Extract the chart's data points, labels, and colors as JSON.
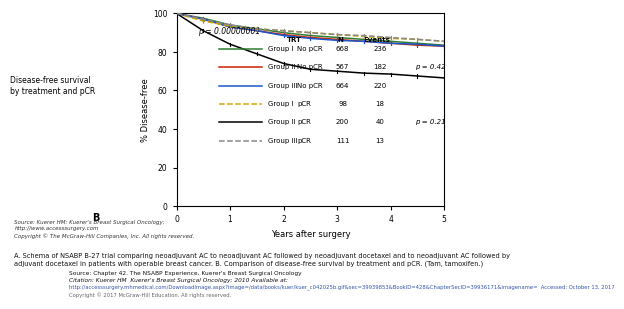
{
  "title": "",
  "ylabel": "% Disease-free",
  "xlabel": "Years after surgery",
  "xlim": [
    0,
    5
  ],
  "ylim": [
    0,
    100
  ],
  "yticks": [
    0,
    20,
    40,
    60,
    80,
    100
  ],
  "xticks": [
    0,
    1,
    2,
    3,
    4,
    5
  ],
  "p_value_top": "p = 0.00000001",
  "p_value_npcr": "p = 0.42",
  "p_value_pcr": "p = 0.21",
  "label_left": "Disease-free survival\nby treatment and pCR",
  "label_B": "B",
  "source_text": "Source: Kuerer HM: Kuerer's Breast Surgical Oncology;\nhttp://www.accesssurgery.com\nCopyright © The McGraw-Hill Companies, Inc. All rights reserved.",
  "caption": "A. Schema of NSABP B-27 trial comparing neoadjuvant AC to neoadjuvant AC followed by neoadjuvant docetaxel and to neoadjuvant AC followed by\nadjuvant docetaxel in patients with operable breast cancer. B. Comparison of disease-free survival by treatment and pCR. (Tam, tamoxifen.)",
  "legend_entries": [
    {
      "label": "Group I",
      "trt": "No pCR",
      "N": 668,
      "Events": 236,
      "color": "#2e7d32",
      "linestyle": "solid",
      "dashed": false
    },
    {
      "label": "Group II",
      "trt": "No pCR",
      "N": 567,
      "Events": 182,
      "color": "#cc2200",
      "linestyle": "solid",
      "dashed": false
    },
    {
      "label": "Group III",
      "trt": "No pCR",
      "N": 664,
      "Events": 220,
      "color": "#1a56cc",
      "linestyle": "solid",
      "dashed": false
    },
    {
      "label": "Group I",
      "trt": "pCR",
      "N": 98,
      "Events": 18,
      "color": "#ccaa00",
      "linestyle": "dashed",
      "dashed": true
    },
    {
      "label": "Group II",
      "trt": "pCR",
      "N": 200,
      "Events": 40,
      "color": "#000000",
      "linestyle": "solid",
      "dashed": false
    },
    {
      "label": "Group III",
      "trt": "pCR",
      "N": 111,
      "Events": 13,
      "color": "#888888",
      "linestyle": "dashed",
      "dashed": true
    }
  ],
  "curves": {
    "group1_npcr": {
      "x": [
        0,
        0.5,
        1,
        1.5,
        2,
        2.5,
        3,
        3.5,
        4,
        4.5,
        5
      ],
      "y": [
        100,
        97.5,
        94,
        92,
        90,
        88.5,
        87.5,
        86.5,
        85.5,
        84.5,
        83.5
      ]
    },
    "group2_npcr": {
      "x": [
        0,
        0.5,
        1,
        1.5,
        2,
        2.5,
        3,
        3.5,
        4,
        4.5,
        5
      ],
      "y": [
        100,
        97,
        93,
        91,
        89,
        87.5,
        86.5,
        85.5,
        84.5,
        83.5,
        83
      ]
    },
    "group3_npcr": {
      "x": [
        0,
        0.5,
        1,
        1.5,
        2,
        2.5,
        3,
        3.5,
        4,
        4.5,
        5
      ],
      "y": [
        100,
        97,
        93,
        91,
        88.5,
        87,
        86,
        85.5,
        84.5,
        84,
        83
      ]
    },
    "group1_pcr": {
      "x": [
        0,
        0.5,
        1,
        1.5,
        2,
        2.5,
        3,
        3.5,
        4,
        4.5,
        5
      ],
      "y": [
        100,
        96,
        93.5,
        92,
        91,
        90,
        89,
        88,
        87,
        86.5,
        85.5
      ]
    },
    "group2_pcr": {
      "x": [
        0,
        0.5,
        1,
        1.5,
        2,
        2.5,
        3,
        3.5,
        4,
        4.5,
        5
      ],
      "y": [
        100,
        91,
        84,
        79,
        74,
        71,
        70,
        69,
        68.5,
        67.5,
        66.5
      ]
    },
    "group3_pcr": {
      "x": [
        0,
        0.5,
        1,
        1.5,
        2,
        2.5,
        3,
        3.5,
        4,
        4.5,
        5
      ],
      "y": [
        100,
        97,
        94,
        92,
        91,
        90,
        89,
        88.5,
        87.5,
        86.5,
        85.5
      ]
    }
  },
  "bg_color": "#ffffff",
  "plot_bg_color": "#ffffff",
  "footer_source": "Source: Chapter 42. The NSABP Experience, Kuerer's Breast Surgical Oncology",
  "footer_citation": "Citation: Kuerer HM  Kuerer's Breast Surgical Oncology; 2010 Available at:",
  "footer_url": "http://accesssurgery.mhmedical.com/DownloadImage.aspx?image=/data/books/kuer/kuer_c042025b.gif&sec=39939853&BookID=428&ChapterSecID=39936171&imagename=  Accessed: October 13, 2017",
  "footer_copy": "Copyright © 2017 McGraw-Hill Education. All rights reserved."
}
